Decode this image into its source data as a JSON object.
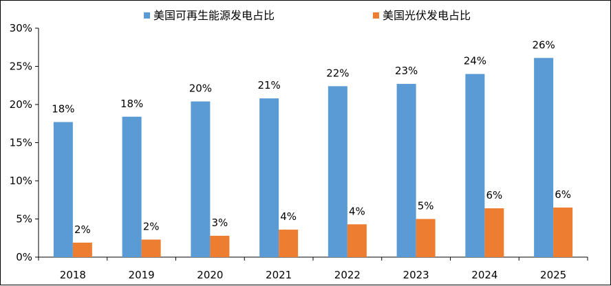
{
  "chart_data": {
    "type": "bar",
    "categories": [
      "2018",
      "2019",
      "2020",
      "2021",
      "2022",
      "2023",
      "2024",
      "2025"
    ],
    "series": [
      {
        "name": "美国可再生能源发电占比",
        "color": "#5B9BD5",
        "values": [
          17.7,
          18.4,
          20.4,
          20.8,
          22.4,
          22.7,
          24.0,
          26.1
        ],
        "labels": [
          "18%",
          "18%",
          "20%",
          "21%",
          "22%",
          "23%",
          "24%",
          "26%"
        ]
      },
      {
        "name": "美国光伏发电占比",
        "color": "#ED7D31",
        "values": [
          1.9,
          2.3,
          2.8,
          3.6,
          4.3,
          5.0,
          6.4,
          6.5
        ],
        "labels": [
          "2%",
          "2%",
          "3%",
          "4%",
          "4%",
          "5%",
          "6%",
          "6%"
        ]
      }
    ],
    "y_ticks": [
      "0%",
      "5%",
      "10%",
      "15%",
      "20%",
      "25%",
      "30%"
    ],
    "ylim": [
      0,
      30
    ],
    "grid": false,
    "legend_position": "top"
  }
}
